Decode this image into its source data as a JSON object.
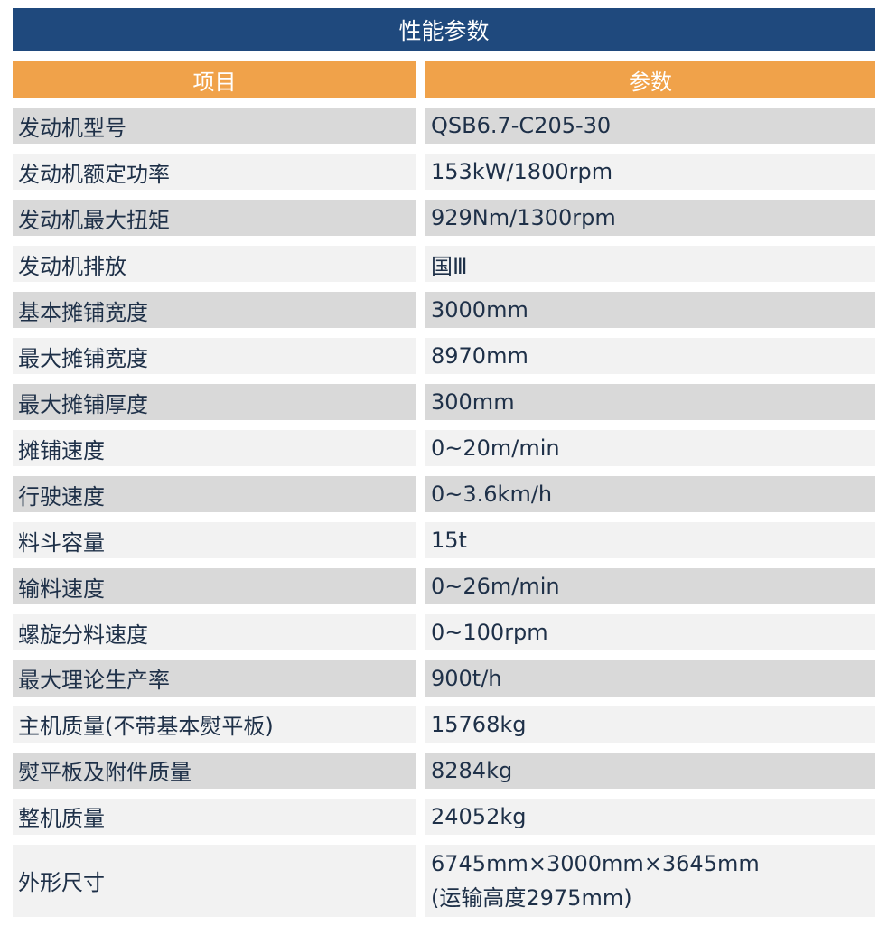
{
  "title": "性能参数",
  "header": {
    "item": "项目",
    "param": "参数"
  },
  "rows": [
    {
      "item": "发动机型号",
      "value": "QSB6.7-C205-30"
    },
    {
      "item": "发动机额定功率",
      "value": "153kW/1800rpm"
    },
    {
      "item": "发动机最大扭矩",
      "value": "929Nm/1300rpm"
    },
    {
      "item": "发动机排放",
      "value": "国Ⅲ"
    },
    {
      "item": "基本摊铺宽度",
      "value": "3000mm"
    },
    {
      "item": "最大摊铺宽度",
      "value": "8970mm"
    },
    {
      "item": "最大摊铺厚度",
      "value": "300mm"
    },
    {
      "item": "摊铺速度",
      "value": "0~20m/min"
    },
    {
      "item": "行驶速度",
      "value": "0~3.6km/h"
    },
    {
      "item": "料斗容量",
      "value": "15t"
    },
    {
      "item": "输料速度",
      "value": "0~26m/min"
    },
    {
      "item": "螺旋分料速度",
      "value": "0~100rpm"
    },
    {
      "item": "最大理论生产率",
      "value": "900t/h"
    },
    {
      "item": "主机质量(不带基本熨平板)",
      "value": "15768kg"
    },
    {
      "item": "熨平板及附件质量",
      "value": "8284kg"
    },
    {
      "item": "整机质量",
      "value": "24052kg"
    }
  ],
  "last": {
    "item": "外形尺寸",
    "value1": "6745mm×3000mm×3645mm",
    "value2": "(运输高度2975mm)"
  },
  "colors": {
    "title": "#1f497d",
    "header": "#f0a24a",
    "row_dark": "#d9d9d9",
    "row_light": "#f2f2f2"
  }
}
